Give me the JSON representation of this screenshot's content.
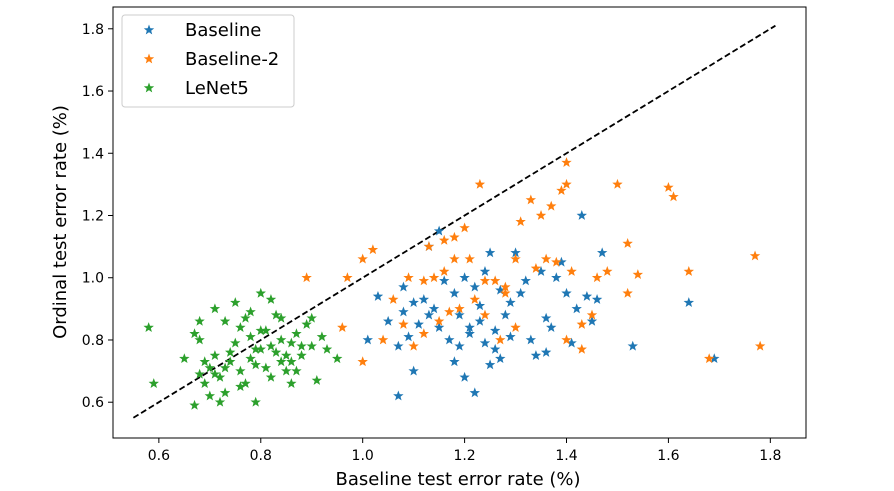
{
  "chart_data": {
    "type": "scatter",
    "title": "",
    "xlabel": "Baseline test error rate (%)",
    "ylabel": "Ordinal test error rate (%)",
    "xlim": [
      0.51,
      1.87
    ],
    "ylim": [
      0.485,
      1.87
    ],
    "xticks": [
      0.6,
      0.8,
      1.0,
      1.2,
      1.4,
      1.6,
      1.8
    ],
    "xtick_labels": [
      "0.6",
      "0.8",
      "1.0",
      "1.2",
      "1.4",
      "1.6",
      "1.8"
    ],
    "yticks": [
      0.6,
      0.8,
      1.0,
      1.2,
      1.4,
      1.6,
      1.8
    ],
    "ytick_labels": [
      "0.6",
      "0.8",
      "1.0",
      "1.2",
      "1.4",
      "1.6",
      "1.8"
    ],
    "legend_position": "top-left",
    "marker": "star",
    "diagonal": {
      "style": "dashed",
      "color": "#000000",
      "from": [
        0.55,
        0.55
      ],
      "to": [
        1.81,
        1.81
      ]
    },
    "series": [
      {
        "name": "Baseline",
        "color": "#1f77b4",
        "points": [
          [
            1.07,
            0.62
          ],
          [
            1.22,
            0.63
          ],
          [
            1.1,
            0.7
          ],
          [
            1.2,
            0.68
          ],
          [
            1.18,
            0.73
          ],
          [
            1.25,
            0.72
          ],
          [
            1.34,
            0.75
          ],
          [
            1.36,
            0.76
          ],
          [
            1.07,
            0.78
          ],
          [
            1.09,
            0.81
          ],
          [
            1.05,
            0.86
          ],
          [
            1.08,
            0.89
          ],
          [
            1.1,
            0.92
          ],
          [
            1.13,
            0.88
          ],
          [
            1.15,
            0.84
          ],
          [
            1.17,
            0.8
          ],
          [
            1.19,
            0.78
          ],
          [
            1.21,
            0.82
          ],
          [
            1.23,
            0.86
          ],
          [
            1.24,
            0.79
          ],
          [
            1.26,
            0.83
          ],
          [
            1.28,
            0.88
          ],
          [
            1.29,
            0.92
          ],
          [
            1.31,
            0.95
          ],
          [
            1.18,
            0.95
          ],
          [
            1.16,
            0.99
          ],
          [
            1.2,
            1.0
          ],
          [
            1.22,
            0.97
          ],
          [
            1.24,
            1.02
          ],
          [
            1.27,
            0.96
          ],
          [
            1.32,
            0.99
          ],
          [
            1.35,
            1.02
          ],
          [
            1.38,
            1.0
          ],
          [
            1.4,
            0.95
          ],
          [
            1.42,
            0.9
          ],
          [
            1.45,
            0.86
          ],
          [
            1.44,
            0.94
          ],
          [
            1.39,
            1.05
          ],
          [
            1.3,
            1.08
          ],
          [
            1.25,
            1.08
          ],
          [
            1.15,
            1.15
          ],
          [
            1.13,
            1.1
          ],
          [
            1.03,
            0.94
          ],
          [
            1.08,
            0.97
          ],
          [
            1.12,
            0.93
          ],
          [
            1.01,
            0.8
          ],
          [
            1.27,
            0.74
          ],
          [
            1.33,
            0.8
          ],
          [
            1.37,
            0.84
          ],
          [
            1.41,
            0.79
          ],
          [
            1.46,
            0.93
          ],
          [
            1.47,
            1.08
          ],
          [
            1.43,
            1.2
          ],
          [
            1.36,
            0.87
          ],
          [
            1.53,
            0.78
          ],
          [
            1.64,
            0.92
          ],
          [
            1.69,
            0.74
          ],
          [
            1.19,
            0.88
          ],
          [
            1.21,
            0.84
          ],
          [
            1.11,
            0.85
          ],
          [
            1.14,
            0.9
          ],
          [
            1.23,
            0.91
          ],
          [
            1.26,
            0.77
          ],
          [
            1.29,
            0.81
          ]
        ]
      },
      {
        "name": "Baseline-2",
        "color": "#ff7f0e",
        "points": [
          [
            0.89,
            1.0
          ],
          [
            0.97,
            1.0
          ],
          [
            1.0,
            1.06
          ],
          [
            1.02,
            1.09
          ],
          [
            0.96,
            0.84
          ],
          [
            1.0,
            0.73
          ],
          [
            1.04,
            0.8
          ],
          [
            1.08,
            0.85
          ],
          [
            1.06,
            0.93
          ],
          [
            1.12,
            0.99
          ],
          [
            1.14,
            1.0
          ],
          [
            1.16,
            1.02
          ],
          [
            1.18,
            1.13
          ],
          [
            1.2,
            1.16
          ],
          [
            1.23,
            1.3
          ],
          [
            1.16,
            1.12
          ],
          [
            1.13,
            1.1
          ],
          [
            1.18,
            1.06
          ],
          [
            1.21,
            1.06
          ],
          [
            1.1,
            0.78
          ],
          [
            1.12,
            0.82
          ],
          [
            1.15,
            0.86
          ],
          [
            1.17,
            0.89
          ],
          [
            1.19,
            0.9
          ],
          [
            1.22,
            0.93
          ],
          [
            1.24,
            0.88
          ],
          [
            1.27,
            0.8
          ],
          [
            1.3,
            0.84
          ],
          [
            1.28,
            0.95
          ],
          [
            1.3,
            1.06
          ],
          [
            1.31,
            1.18
          ],
          [
            1.33,
            1.25
          ],
          [
            1.35,
            1.2
          ],
          [
            1.37,
            1.23
          ],
          [
            1.39,
            1.28
          ],
          [
            1.4,
            1.3
          ],
          [
            1.4,
            1.37
          ],
          [
            1.38,
            1.05
          ],
          [
            1.41,
            1.02
          ],
          [
            1.43,
            0.85
          ],
          [
            1.45,
            0.88
          ],
          [
            1.4,
            0.8
          ],
          [
            1.43,
            0.77
          ],
          [
            1.5,
            1.3
          ],
          [
            1.52,
            1.11
          ],
          [
            1.54,
            1.01
          ],
          [
            1.52,
            0.95
          ],
          [
            1.6,
            1.29
          ],
          [
            1.61,
            1.26
          ],
          [
            1.64,
            1.02
          ],
          [
            1.68,
            0.74
          ],
          [
            1.77,
            1.07
          ],
          [
            1.78,
            0.78
          ],
          [
            1.26,
            0.99
          ],
          [
            1.28,
            0.97
          ],
          [
            1.09,
            1.0
          ],
          [
            1.24,
            0.99
          ],
          [
            1.34,
            1.03
          ],
          [
            1.36,
            1.06
          ],
          [
            1.46,
            1.0
          ],
          [
            1.48,
            1.02
          ]
        ]
      },
      {
        "name": "LeNet5",
        "color": "#2ca02c",
        "points": [
          [
            0.58,
            0.84
          ],
          [
            0.59,
            0.66
          ],
          [
            0.67,
            0.59
          ],
          [
            0.68,
            0.69
          ],
          [
            0.69,
            0.66
          ],
          [
            0.7,
            0.71
          ],
          [
            0.71,
            0.75
          ],
          [
            0.72,
            0.68
          ],
          [
            0.73,
            0.63
          ],
          [
            0.74,
            0.73
          ],
          [
            0.75,
            0.79
          ],
          [
            0.76,
            0.7
          ],
          [
            0.77,
            0.66
          ],
          [
            0.78,
            0.74
          ],
          [
            0.79,
            0.77
          ],
          [
            0.8,
            0.83
          ],
          [
            0.81,
            0.71
          ],
          [
            0.82,
            0.78
          ],
          [
            0.83,
            0.88
          ],
          [
            0.84,
            0.8
          ],
          [
            0.85,
            0.75
          ],
          [
            0.86,
            0.73
          ],
          [
            0.87,
            0.82
          ],
          [
            0.88,
            0.78
          ],
          [
            0.89,
            0.85
          ],
          [
            0.9,
            0.78
          ],
          [
            0.92,
            0.81
          ],
          [
            0.93,
            0.77
          ],
          [
            0.95,
            0.74
          ],
          [
            0.8,
            0.95
          ],
          [
            0.82,
            0.93
          ],
          [
            0.75,
            0.92
          ],
          [
            0.71,
            0.9
          ],
          [
            0.73,
            0.86
          ],
          [
            0.68,
            0.8
          ],
          [
            0.67,
            0.82
          ],
          [
            0.7,
            0.62
          ],
          [
            0.72,
            0.6
          ],
          [
            0.76,
            0.65
          ],
          [
            0.79,
            0.6
          ],
          [
            0.82,
            0.68
          ],
          [
            0.86,
            0.66
          ],
          [
            0.91,
            0.67
          ],
          [
            0.84,
            0.87
          ],
          [
            0.78,
            0.81
          ],
          [
            0.74,
            0.76
          ],
          [
            0.77,
            0.87
          ],
          [
            0.81,
            0.83
          ],
          [
            0.88,
            0.75
          ],
          [
            0.85,
            0.7
          ],
          [
            0.69,
            0.73
          ],
          [
            0.71,
            0.69
          ],
          [
            0.73,
            0.71
          ],
          [
            0.79,
            0.72
          ],
          [
            0.83,
            0.76
          ],
          [
            0.87,
            0.7
          ],
          [
            0.9,
            0.87
          ],
          [
            0.76,
            0.84
          ],
          [
            0.78,
            0.89
          ],
          [
            0.65,
            0.74
          ],
          [
            0.68,
            0.86
          ],
          [
            0.8,
            0.77
          ],
          [
            0.84,
            0.73
          ],
          [
            0.86,
            0.79
          ]
        ]
      }
    ]
  }
}
